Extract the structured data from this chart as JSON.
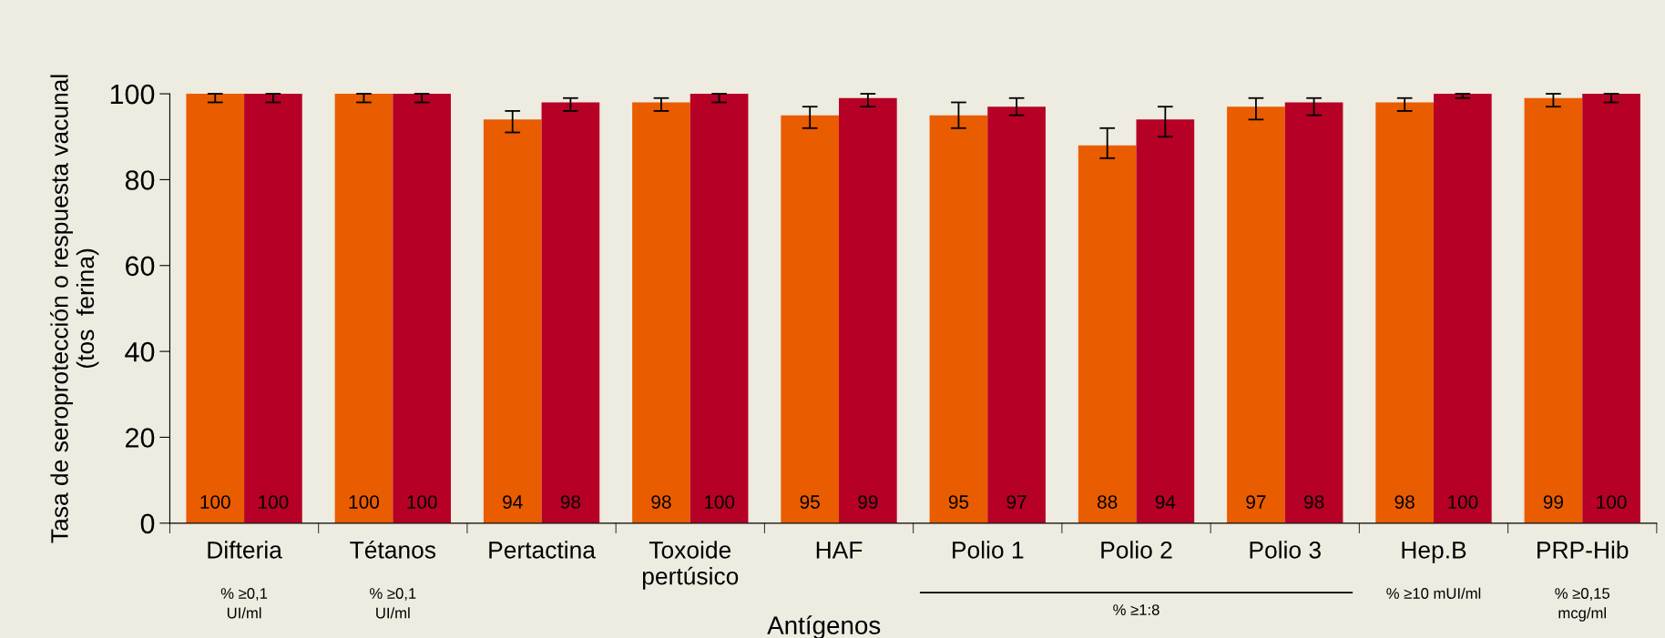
{
  "chart_data": {
    "type": "bar",
    "xlabel": "Antígenos",
    "ylabel": "Tasa de seroprotección o respuesta vacunal\n(tos  ferina)",
    "categories": [
      "Difteria",
      "Tétanos",
      "Pertactina",
      "Toxoide\npertúsico",
      "HAF",
      "Polio 1",
      "Polio 2",
      "Polio 3",
      "Hep.B",
      "PRP-Hib"
    ],
    "series": [
      {
        "color": "#e95c00",
        "values": [
          100,
          100,
          94,
          98,
          95,
          95,
          88,
          97,
          98,
          99
        ],
        "errors": [
          [
            98,
            100
          ],
          [
            98,
            100
          ],
          [
            91,
            96
          ],
          [
            96,
            99
          ],
          [
            92,
            97
          ],
          [
            92,
            98
          ],
          [
            85,
            92
          ],
          [
            94,
            99
          ],
          [
            96,
            99
          ],
          [
            97,
            100
          ]
        ]
      },
      {
        "color": "#b60026",
        "values": [
          100,
          100,
          98,
          100,
          99,
          97,
          94,
          98,
          100,
          100
        ],
        "errors": [
          [
            98,
            100
          ],
          [
            98,
            100
          ],
          [
            96,
            99
          ],
          [
            98,
            100
          ],
          [
            97,
            100
          ],
          [
            95,
            99
          ],
          [
            90,
            97
          ],
          [
            95,
            99
          ],
          [
            99,
            100
          ],
          [
            98,
            100
          ]
        ]
      }
    ],
    "ylim": [
      0,
      100
    ],
    "yticks": [
      0,
      20,
      40,
      60,
      80,
      100
    ],
    "data_labels": true,
    "grid": false,
    "annotations": [
      "% ≥0,1\nUI/ml",
      "% ≥0,1\nUI/ml",
      "% ≥1:8",
      "% ≥10 mUI/ml",
      "% ≥0,15\nmcg/ml"
    ]
  }
}
